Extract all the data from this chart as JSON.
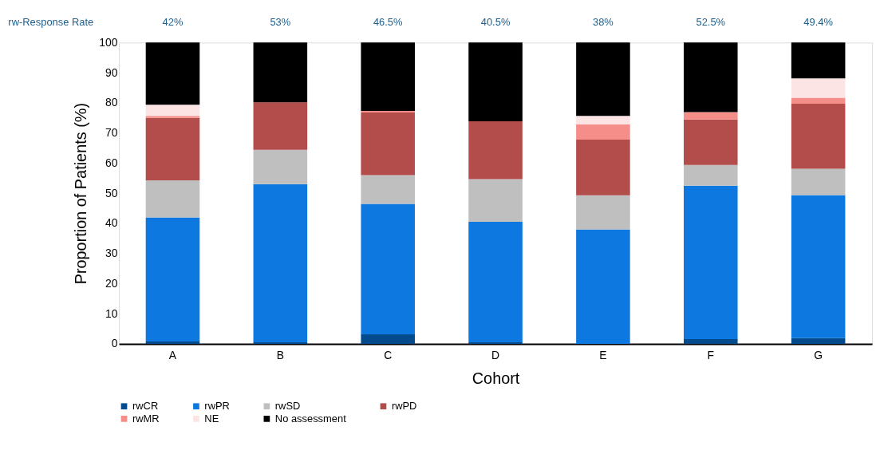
{
  "chart_data": {
    "type": "bar",
    "stacked": true,
    "xlabel": "Cohort",
    "ylabel": "Proportion of Patients (%)",
    "categories": [
      "A",
      "B",
      "C",
      "D",
      "E",
      "F",
      "G"
    ],
    "series": [
      {
        "name": "rwCR",
        "color": "#034b8c",
        "values": [
          0.8,
          0.5,
          3.2,
          0.5,
          0,
          1.6,
          1.9
        ]
      },
      {
        "name": "rwPR",
        "color": "#0d78e0",
        "values": [
          41.2,
          52.5,
          43.3,
          40,
          38,
          50.9,
          47.5
        ]
      },
      {
        "name": "rwSD",
        "color": "#bfbfbf",
        "values": [
          12.3,
          11.4,
          9.5,
          14.2,
          11.3,
          6.9,
          8.7
        ]
      },
      {
        "name": "rwPD",
        "color": "#b34d4b",
        "values": [
          20.7,
          15.8,
          20.8,
          19.2,
          18.5,
          15.1,
          21.6
        ]
      },
      {
        "name": "rwMR",
        "color": "#f58d88",
        "values": [
          0.7,
          0,
          0.5,
          0,
          5.1,
          2.4,
          2
        ]
      },
      {
        "name": "NE",
        "color": "#fce4e4",
        "values": [
          3.7,
          0,
          0,
          0,
          2.8,
          0,
          6.4
        ]
      },
      {
        "name": "No assessment",
        "color": "#000000",
        "values": [
          20.6,
          19.8,
          22.7,
          26.1,
          24.3,
          23.1,
          11.9
        ]
      }
    ],
    "ylim": [
      0,
      100
    ],
    "yticks": [
      0,
      10,
      20,
      30,
      40,
      50,
      60,
      70,
      80,
      90,
      100
    ],
    "grid": false,
    "legend": "bottom",
    "annotations": [
      "rw-Response Rate",
      "42%",
      "53%",
      "46.5%",
      "40.5%",
      "38%",
      "52.5%",
      "49.4%"
    ]
  }
}
